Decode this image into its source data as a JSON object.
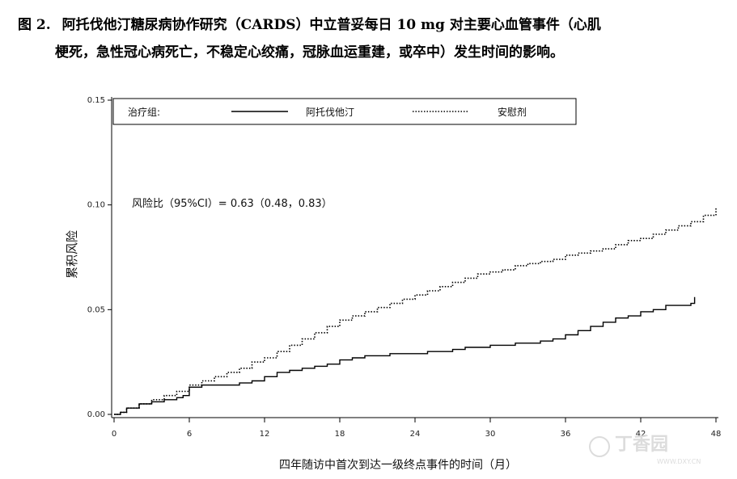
{
  "caption": {
    "label": "图 2.",
    "line1": "阿托伐他汀糖尿病协作研究（CARDS）中立普妥每日 10 mg 对主要心血管事件（心肌",
    "line2": "梗死，急性冠心病死亡，不稳定心绞痛，冠脉血运重建，或卒中）发生时间的影响。"
  },
  "watermark": {
    "text": "丁香园",
    "url": "WWW.DXY.CN"
  },
  "chart_data": {
    "type": "line",
    "title": "",
    "xlabel": "四年随访中首次到达一级终点事件的时间（月）",
    "ylabel": "累积风险",
    "xlim": [
      0,
      48
    ],
    "ylim": [
      0,
      0.15
    ],
    "x_ticks": [
      "0",
      "6",
      "12",
      "18",
      "24",
      "30",
      "36",
      "42",
      "48"
    ],
    "y_ticks": [
      "0.00",
      "0.05",
      "0.10",
      "0.15"
    ],
    "legend": {
      "title": "治疗组:",
      "placement": "top"
    },
    "annotation": "风险比（95%CI）= 0.63（0.48，0.83）",
    "grid": false,
    "series": [
      {
        "name": "阿托伐他汀",
        "style": "solid",
        "color": "#000000",
        "x": [
          0,
          0.5,
          1,
          2,
          3,
          4,
          5,
          5.5,
          6,
          6.5,
          7,
          8,
          9,
          10,
          11,
          12,
          13,
          14,
          15,
          16,
          17,
          18,
          19,
          20,
          21,
          22,
          23,
          24,
          25,
          26,
          27,
          28,
          29,
          30,
          31,
          32,
          33,
          34,
          35,
          36,
          37,
          38,
          39,
          40,
          41,
          42,
          43,
          44,
          45,
          46,
          46.3
        ],
        "y": [
          0,
          0.001,
          0.003,
          0.005,
          0.006,
          0.007,
          0.008,
          0.009,
          0.013,
          0.013,
          0.014,
          0.014,
          0.014,
          0.015,
          0.016,
          0.018,
          0.02,
          0.021,
          0.022,
          0.023,
          0.024,
          0.026,
          0.027,
          0.028,
          0.028,
          0.029,
          0.029,
          0.029,
          0.03,
          0.03,
          0.031,
          0.032,
          0.032,
          0.033,
          0.033,
          0.034,
          0.034,
          0.035,
          0.036,
          0.038,
          0.04,
          0.042,
          0.044,
          0.046,
          0.047,
          0.049,
          0.05,
          0.052,
          0.052,
          0.053,
          0.056
        ]
      },
      {
        "name": "安慰剂",
        "style": "dotted",
        "color": "#000000",
        "x": [
          0,
          0.5,
          1,
          2,
          3,
          4,
          5,
          6,
          7,
          8,
          9,
          10,
          11,
          12,
          13,
          14,
          15,
          16,
          17,
          18,
          19,
          20,
          21,
          22,
          23,
          24,
          25,
          26,
          27,
          28,
          29,
          30,
          31,
          32,
          33,
          34,
          35,
          36,
          37,
          38,
          39,
          40,
          41,
          42,
          43,
          44,
          45,
          46,
          47,
          48
        ],
        "y": [
          0,
          0.001,
          0.003,
          0.005,
          0.007,
          0.009,
          0.011,
          0.014,
          0.016,
          0.018,
          0.02,
          0.022,
          0.025,
          0.027,
          0.03,
          0.033,
          0.036,
          0.039,
          0.042,
          0.045,
          0.047,
          0.049,
          0.051,
          0.053,
          0.055,
          0.057,
          0.059,
          0.061,
          0.063,
          0.065,
          0.067,
          0.068,
          0.069,
          0.071,
          0.072,
          0.073,
          0.074,
          0.076,
          0.077,
          0.078,
          0.079,
          0.081,
          0.083,
          0.084,
          0.086,
          0.088,
          0.09,
          0.092,
          0.095,
          0.099
        ]
      }
    ]
  }
}
